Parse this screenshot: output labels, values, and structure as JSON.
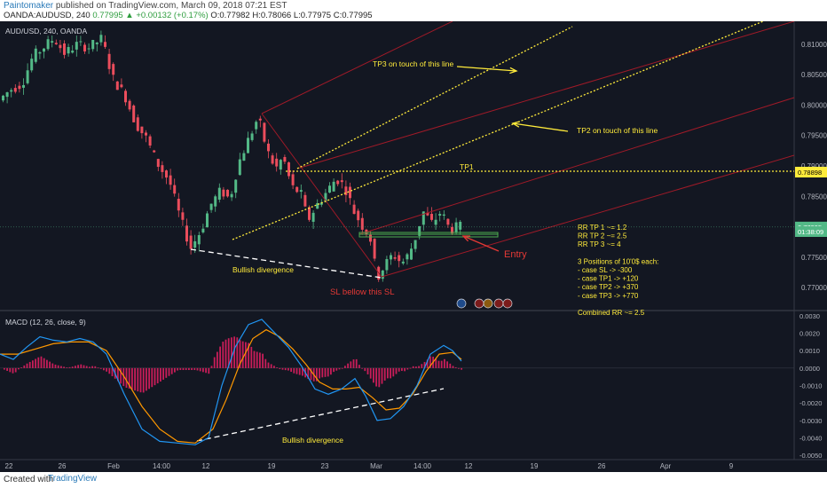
{
  "header": {
    "author": "Paintomaker",
    "published_text": "published on TradingView.com, March 09, 2018 07:21 EST",
    "symbol_line": "OANDA:AUDUSD, 240",
    "price_change": "0.77995 ▲ +0.00132 (+0.17%)",
    "ohlc": "O:0.77982 H:0.78066 L:0.77975 C:0.77995"
  },
  "footer": {
    "created_with": "Created with",
    "brand": "TradingView"
  },
  "colors": {
    "bg": "#131722",
    "up_candle": "#53b987",
    "down_candle": "#eb4d5c",
    "yellow": "#ffeb3b",
    "channel_red": "#a01a28",
    "macd_line": "#2196f3",
    "signal_line": "#ff9800",
    "hist": "#e91e63",
    "green": "#4caf50",
    "entry": "#e53935"
  },
  "chart_data": [
    {
      "type": "candlestick",
      "title": "AUD/USD, 240, OANDA",
      "ylim": [
        0.7665,
        0.8135
      ],
      "y_ticks": [
        "0.81000",
        "0.80500",
        "0.80000",
        "0.79500",
        "0.79000",
        "0.78500",
        "0.78000",
        "0.77500",
        "0.77000"
      ],
      "x_ticks": [
        "22",
        "26",
        "Feb",
        "14:00",
        "12",
        "19",
        "23",
        "Mar",
        "14:00",
        "12",
        "19",
        "26",
        "Apr",
        "9"
      ],
      "price_labels": [
        {
          "value": 0.78898,
          "text": "0.78898",
          "color": "#ffeb3b",
          "text_color": "#000000"
        },
        {
          "value": 0.77995,
          "text": "0.77995",
          "color": "#53b987",
          "text_color": "#ffffff"
        },
        {
          "value": 0.7792,
          "text": "01:38:09",
          "color": "#53b987",
          "text_color": "#ffffff"
        }
      ],
      "path": [
        [
          0,
          0.8005
        ],
        [
          14,
          0.8025
        ],
        [
          28,
          0.8035
        ],
        [
          40,
          0.808
        ],
        [
          52,
          0.8095
        ],
        [
          64,
          0.811
        ],
        [
          76,
          0.8085
        ],
        [
          90,
          0.81
        ],
        [
          104,
          0.8095
        ],
        [
          118,
          0.811
        ],
        [
          130,
          0.8045
        ],
        [
          144,
          0.8015
        ],
        [
          156,
          0.797
        ],
        [
          168,
          0.7945
        ],
        [
          180,
          0.7905
        ],
        [
          194,
          0.7875
        ],
        [
          206,
          0.7815
        ],
        [
          218,
          0.7765
        ],
        [
          230,
          0.7795
        ],
        [
          240,
          0.7835
        ],
        [
          252,
          0.786
        ],
        [
          262,
          0.7845
        ],
        [
          272,
          0.7905
        ],
        [
          282,
          0.794
        ],
        [
          294,
          0.798
        ],
        [
          304,
          0.7925
        ],
        [
          314,
          0.7895
        ],
        [
          322,
          0.7915
        ],
        [
          332,
          0.7865
        ],
        [
          342,
          0.7855
        ],
        [
          350,
          0.781
        ],
        [
          360,
          0.7835
        ],
        [
          370,
          0.7855
        ],
        [
          382,
          0.788
        ],
        [
          392,
          0.7865
        ],
        [
          402,
          0.7825
        ],
        [
          412,
          0.78
        ],
        [
          420,
          0.7785
        ],
        [
          428,
          0.7715
        ],
        [
          436,
          0.7735
        ],
        [
          446,
          0.7755
        ],
        [
          456,
          0.774
        ],
        [
          464,
          0.7755
        ],
        [
          472,
          0.7785
        ],
        [
          480,
          0.7825
        ],
        [
          490,
          0.7805
        ],
        [
          500,
          0.7825
        ],
        [
          510,
          0.7795
        ],
        [
          520,
          0.78
        ]
      ],
      "annotations": {
        "tp3": "TP3 on touch of this line",
        "tp2": "TP2 on touch of this line",
        "tp1": "TP1",
        "bullish_div": "Bullish divergence",
        "sl": "SL bellow this SL",
        "entry": "Entry",
        "rr_lines": [
          "RR TP 1 ~= 1.2",
          "RR TP 2 ~= 2.5",
          "RR TP 3 ~= 4",
          "",
          "3 Positions of 10'0$ each:",
          "- case SL -> -300",
          "- case TP1 -> +120",
          "- case TP2 -> +370",
          "- case TP3 -> +770",
          "",
          "Combined RR ~= 2.5"
        ]
      }
    },
    {
      "type": "line",
      "title": "MACD (12, 26, close, 9)",
      "ylim": [
        -0.0052,
        0.0032
      ],
      "y_ticks": [
        "0.0030",
        "0.0020",
        "0.0010",
        "0.0000",
        "-0.0010",
        "-0.0020",
        "-0.0030",
        "-0.0040",
        "-0.0050"
      ],
      "series": [
        {
          "name": "MACD",
          "path": [
            [
              0,
              0.0008
            ],
            [
              15,
              0.0005
            ],
            [
              30,
              0.0012
            ],
            [
              45,
              0.0018
            ],
            [
              60,
              0.0016
            ],
            [
              75,
              0.0015
            ],
            [
              90,
              0.0017
            ],
            [
              105,
              0.0015
            ],
            [
              120,
              0.0008
            ],
            [
              140,
              -0.0015
            ],
            [
              160,
              -0.0035
            ],
            [
              180,
              -0.0042
            ],
            [
              200,
              -0.0043
            ],
            [
              220,
              -0.0044
            ],
            [
              235,
              -0.004
            ],
            [
              250,
              -0.001
            ],
            [
              265,
              0.0012
            ],
            [
              280,
              0.0025
            ],
            [
              295,
              0.0028
            ],
            [
              310,
              0.002
            ],
            [
              325,
              0.0012
            ],
            [
              340,
              0.0001
            ],
            [
              355,
              -0.0012
            ],
            [
              370,
              -0.0015
            ],
            [
              385,
              -0.0012
            ],
            [
              400,
              -0.0006
            ],
            [
              412,
              -0.0016
            ],
            [
              425,
              -0.003
            ],
            [
              440,
              -0.0029
            ],
            [
              455,
              -0.0022
            ],
            [
              470,
              -0.001
            ],
            [
              485,
              0.0008
            ],
            [
              500,
              0.0013
            ],
            [
              510,
              0.001
            ],
            [
              520,
              0.0004
            ]
          ]
        },
        {
          "name": "Signal",
          "path": [
            [
              0,
              0.0008
            ],
            [
              20,
              0.0008
            ],
            [
              40,
              0.0011
            ],
            [
              60,
              0.0014
            ],
            [
              80,
              0.0015
            ],
            [
              100,
              0.0015
            ],
            [
              120,
              0.001
            ],
            [
              140,
              -0.0005
            ],
            [
              160,
              -0.0022
            ],
            [
              180,
              -0.0035
            ],
            [
              200,
              -0.0042
            ],
            [
              220,
              -0.0043
            ],
            [
              240,
              -0.0035
            ],
            [
              255,
              -0.0018
            ],
            [
              270,
              0.0002
            ],
            [
              285,
              0.0017
            ],
            [
              300,
              0.0022
            ],
            [
              315,
              0.0018
            ],
            [
              330,
              0.0011
            ],
            [
              345,
              0.0002
            ],
            [
              360,
              -0.0008
            ],
            [
              375,
              -0.0012
            ],
            [
              390,
              -0.0012
            ],
            [
              405,
              -0.0011
            ],
            [
              420,
              -0.0017
            ],
            [
              435,
              -0.0024
            ],
            [
              450,
              -0.0023
            ],
            [
              465,
              -0.0015
            ],
            [
              480,
              -0.0002
            ],
            [
              495,
              0.0008
            ],
            [
              510,
              0.0009
            ],
            [
              520,
              0.0005
            ]
          ]
        }
      ],
      "annotations": {
        "bullish_div": "Bullish divergence"
      }
    }
  ]
}
